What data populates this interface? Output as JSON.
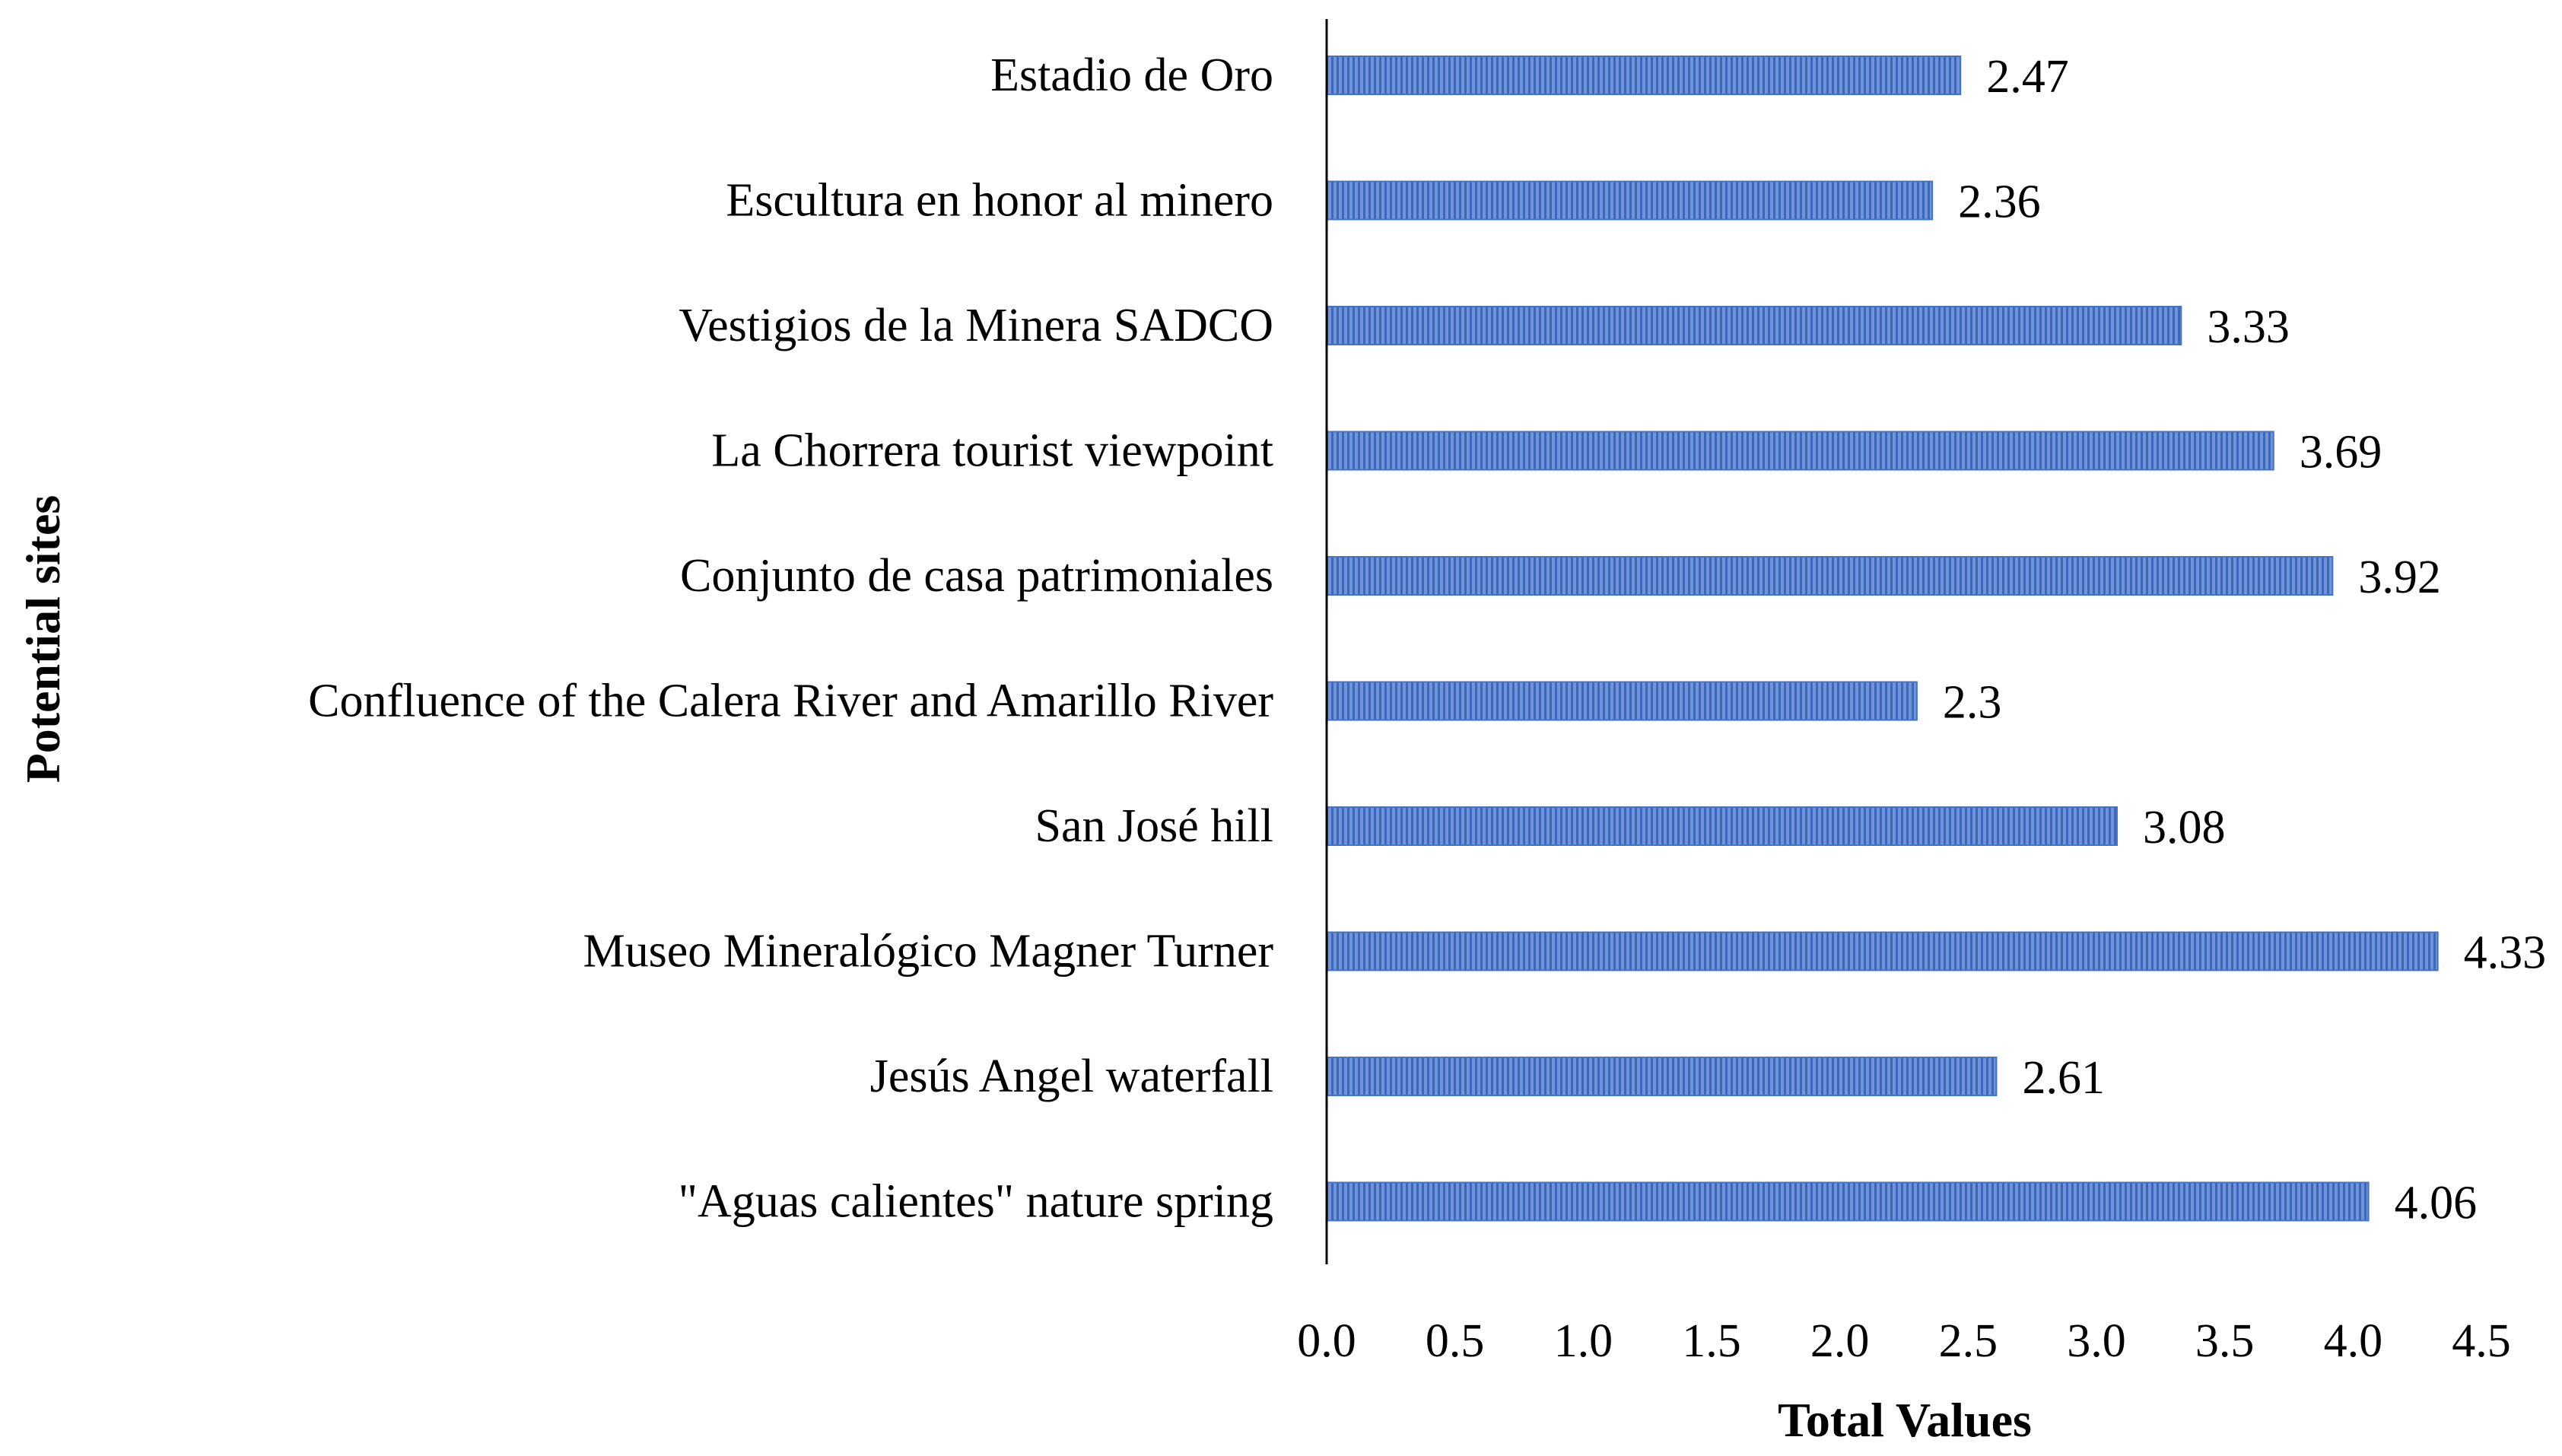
{
  "chart_data": {
    "type": "bar",
    "orientation": "horizontal",
    "title": "",
    "xlabel": "Total Values",
    "ylabel": "Potential sites",
    "xlim": [
      0,
      4.5
    ],
    "xticks": [
      "0.0",
      "0.5",
      "1.0",
      "1.5",
      "2.0",
      "2.5",
      "3.0",
      "3.5",
      "4.0",
      "4.5"
    ],
    "grid": false,
    "legend": "none",
    "bar_color": "#4472C4",
    "categories": [
      "Estadio de Oro",
      "Escultura en honor al minero",
      "Vestigios de la Minera SADCO",
      "La Chorrera tourist viewpoint",
      "Conjunto de casa patrimoniales",
      "Confluence of the Calera River and Amarillo River",
      "San José hill",
      "Museo Mineralógico Magner Turner",
      "Jesús Angel waterfall",
      "\"Aguas calientes\" nature spring"
    ],
    "values": [
      2.47,
      2.36,
      3.33,
      3.69,
      3.92,
      2.3,
      3.08,
      4.33,
      2.61,
      4.06
    ],
    "value_labels": [
      "2.47",
      "2.36",
      "3.33",
      "3.69",
      "3.92",
      "2.3",
      "3.08",
      "4.33",
      "2.61",
      "4.06"
    ]
  }
}
